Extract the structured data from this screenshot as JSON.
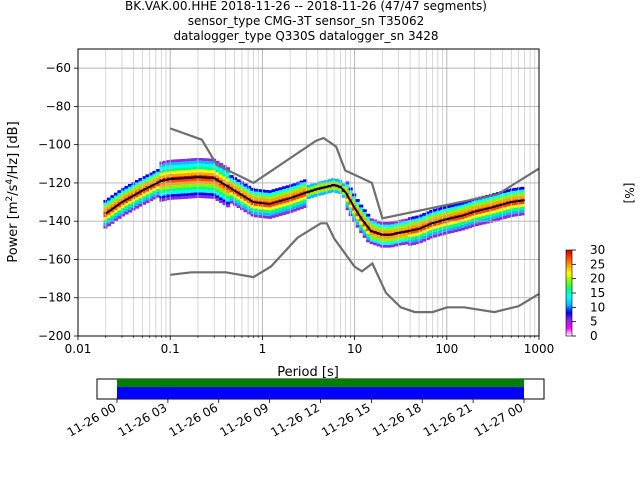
{
  "chart_data": {
    "type": "heatmap",
    "title_lines": [
      "BK.VAK.00.HHE   2018-11-26 -- 2018-11-26  (47/47 segments)",
      "sensor_type CMG-3T sensor_sn T35062",
      "datalogger_type Q330S datalogger_sn 3428"
    ],
    "xlabel": "Period [s]",
    "ylabel_parts": [
      "Power [m",
      "2",
      "/s",
      "4",
      "/Hz] [dB]"
    ],
    "xscale": "log",
    "xlim": [
      0.01,
      1000
    ],
    "ylim": [
      -200,
      -50
    ],
    "grid": true,
    "x_ticks": [
      {
        "value": 0.01,
        "label": "0.01"
      },
      {
        "value": 0.1,
        "label": "0.1"
      },
      {
        "value": 1,
        "label": "1"
      },
      {
        "value": 10,
        "label": "10"
      },
      {
        "value": 100,
        "label": "100"
      },
      {
        "value": 1000,
        "label": "1000"
      }
    ],
    "y_ticks": [
      {
        "value": -60,
        "label": "−60"
      },
      {
        "value": -80,
        "label": "−80"
      },
      {
        "value": -100,
        "label": "−100"
      },
      {
        "value": -120,
        "label": "−120"
      },
      {
        "value": -140,
        "label": "−140"
      },
      {
        "value": -160,
        "label": "−160"
      },
      {
        "value": -180,
        "label": "−180"
      },
      {
        "value": -200,
        "label": "−200"
      }
    ],
    "colorbar": {
      "label": "[%]",
      "range": [
        0,
        30
      ],
      "ticks": [
        {
          "value": 0,
          "label": "0"
        },
        {
          "value": 5,
          "label": "5"
        },
        {
          "value": 10,
          "label": "10"
        },
        {
          "value": 15,
          "label": "15"
        },
        {
          "value": 20,
          "label": "20"
        },
        {
          "value": 25,
          "label": "25"
        },
        {
          "value": 30,
          "label": "30"
        }
      ],
      "colors": [
        "#ffffff",
        "#ff00ff",
        "#8a2be2",
        "#0000ff",
        "#00bfff",
        "#00ffff",
        "#00ff7f",
        "#7fff00",
        "#ffff00",
        "#ffa500",
        "#ff4500",
        "#cc0000"
      ]
    },
    "nlnm": {
      "name": "NLNM",
      "x": [
        0.1,
        0.17,
        0.4,
        0.8,
        1.24,
        2.4,
        4.3,
        5.0,
        6.0,
        10.0,
        12.0,
        15.6,
        21.9,
        31.6,
        45.0,
        70.0,
        101.0,
        154.0,
        328.0,
        600.0,
        1000.0
      ],
      "y": [
        -168,
        -166.7,
        -166.7,
        -169.2,
        -163.7,
        -148.6,
        -141.1,
        -141.1,
        -149.0,
        -163.8,
        -166.2,
        -162.1,
        -177.5,
        -185.0,
        -187.5,
        -187.5,
        -185.0,
        -185.0,
        -187.5,
        -184.4,
        -178.0
      ]
    },
    "nhnm": {
      "name": "NHNM",
      "x": [
        0.1,
        0.22,
        0.32,
        0.8,
        3.8,
        4.6,
        6.3,
        7.9,
        15.4,
        20.0,
        354.8,
        1000.0
      ],
      "y": [
        -91.5,
        -97.4,
        -110.5,
        -120.0,
        -98.0,
        -96.5,
        -101.0,
        -113.5,
        -120.0,
        -138.5,
        -126.0,
        -112.5
      ]
    },
    "mean_psd": {
      "name": "mean",
      "color": "#000000",
      "x": [
        0.02,
        0.03,
        0.05,
        0.08,
        0.1,
        0.15,
        0.2,
        0.3,
        0.5,
        0.8,
        1.2,
        2.0,
        3.0,
        4.0,
        5.0,
        6.0,
        7.0,
        8.0,
        10.0,
        12.0,
        15.0,
        20.0,
        25.0,
        30.0,
        40.0,
        50.0,
        70.0,
        100.0,
        150.0,
        200.0,
        300.0,
        500.0,
        700.0
      ],
      "y": [
        -136,
        -130,
        -124,
        -119,
        -118,
        -117.5,
        -117,
        -117.5,
        -124,
        -130,
        -131,
        -128,
        -125,
        -123,
        -122,
        -121,
        -122,
        -125,
        -133,
        -139,
        -145,
        -147,
        -147,
        -146,
        -145,
        -144,
        -141,
        -139,
        -137,
        -135,
        -133,
        -130,
        -129
      ]
    },
    "availability": {
      "tick_labels": [
        "11-26 00",
        "11-26 03",
        "11-26 06",
        "11-26 09",
        "11-26 12",
        "11-26 15",
        "11-26 18",
        "11-26 21",
        "11-27 00"
      ],
      "coverage_color": "#0000ff",
      "used_color": "#008000",
      "segments": "47/47"
    }
  }
}
